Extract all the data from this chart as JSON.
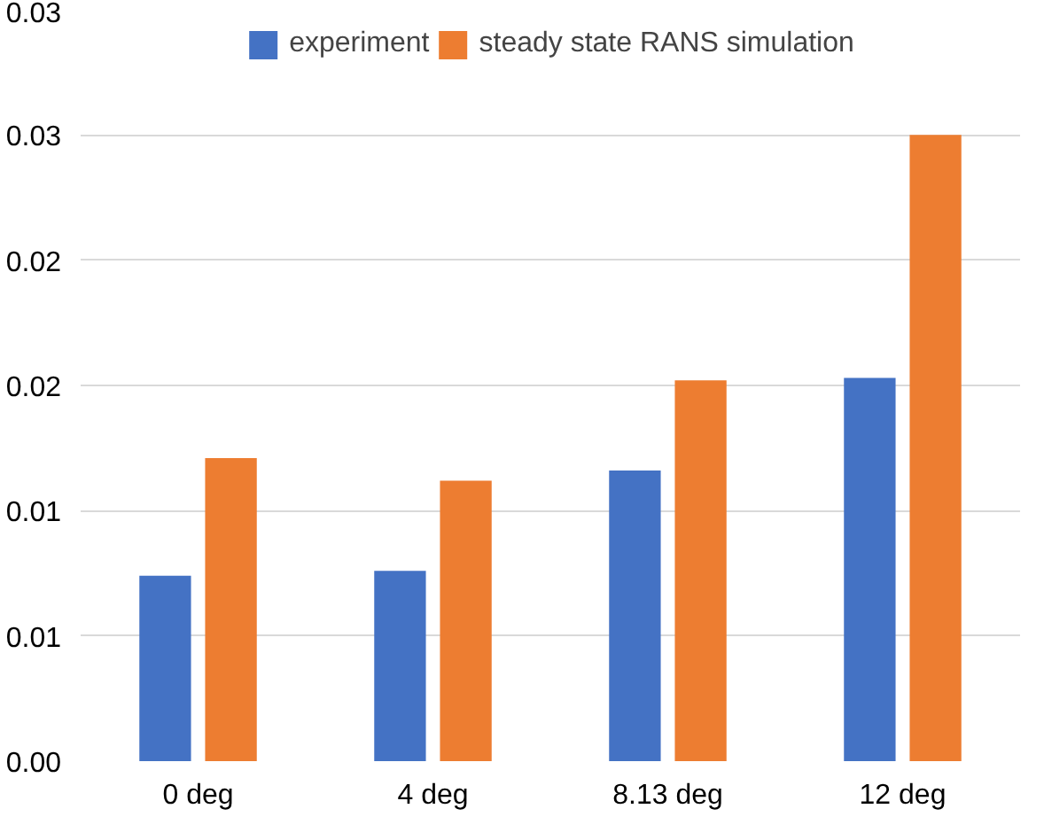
{
  "chart_data": {
    "type": "bar",
    "categories": [
      "0 deg",
      "4 deg",
      "8.13 deg",
      "12 deg"
    ],
    "series": [
      {
        "name": "experiment",
        "color": "#4472c4",
        "values": [
          0.0074,
          0.0076,
          0.0116,
          0.0153
        ]
      },
      {
        "name": "steady state RANS simulation",
        "color": "#ed7d31",
        "values": [
          0.0121,
          0.0112,
          0.0152,
          0.025
        ]
      }
    ],
    "ylim": [
      0,
      0.03
    ],
    "yticks": [
      {
        "value": 0,
        "label": "0.00"
      },
      {
        "value": 0.005,
        "label": "0.01"
      },
      {
        "value": 0.01,
        "label": "0.01"
      },
      {
        "value": 0.015,
        "label": "0.02"
      },
      {
        "value": 0.02,
        "label": "0.02"
      },
      {
        "value": 0.025,
        "label": "0.03"
      },
      {
        "value": 0.03,
        "label": "0.03"
      }
    ],
    "grid": "y",
    "legend": "top"
  }
}
